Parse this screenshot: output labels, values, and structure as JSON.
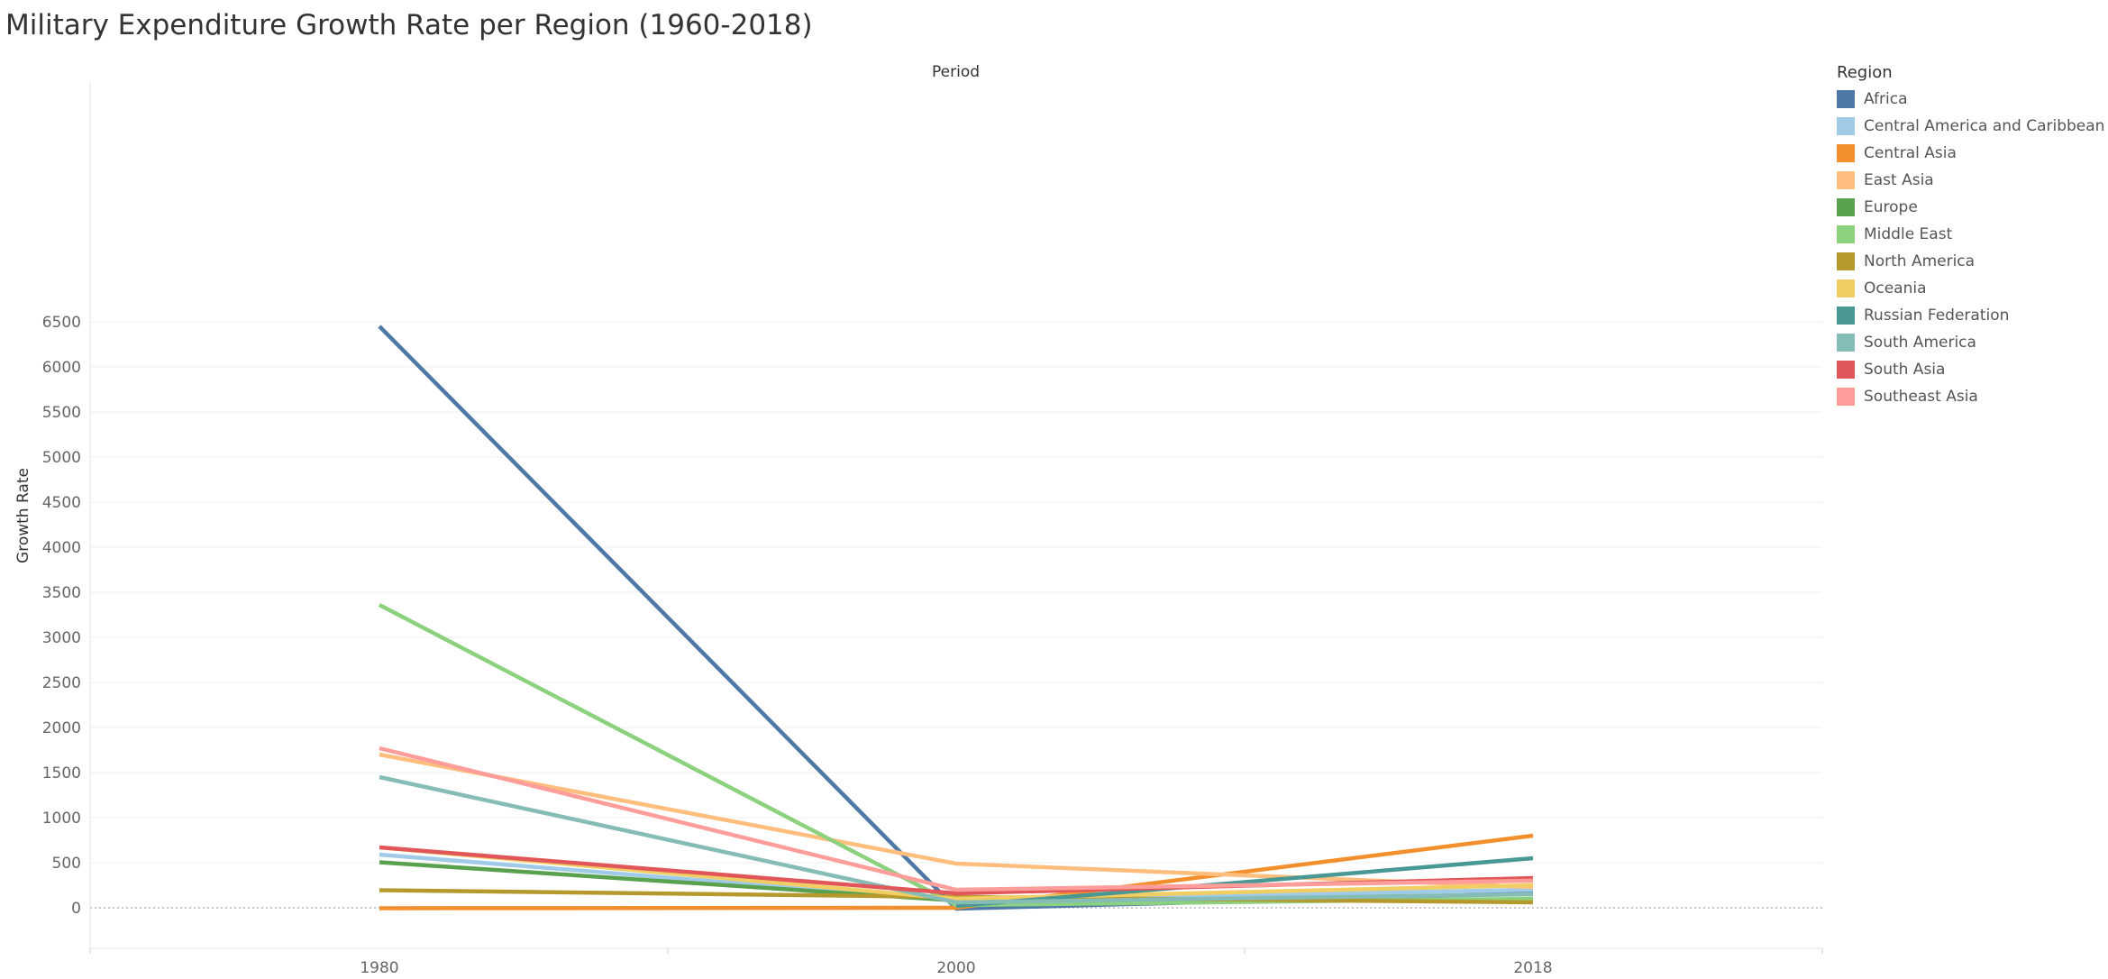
{
  "chart_data": {
    "type": "line",
    "title": "Military Expenditure Growth Rate per Region (1960-2018)",
    "column_header": "Period",
    "xlabel": "",
    "ylabel": "Growth Rate",
    "categories": [
      "1980",
      "2000",
      "2018"
    ],
    "y_ticks": [
      0,
      500,
      1000,
      1500,
      2000,
      2500,
      3000,
      3500,
      4000,
      4500,
      5000,
      5500,
      6000,
      6500
    ],
    "y_tick_labels": [
      "0",
      "500",
      "1000",
      "1500",
      "2000",
      "2500",
      "3000",
      "3500",
      "4000",
      "4500",
      "5000",
      "5500",
      "6000",
      "6500"
    ],
    "ylim": [
      -350,
      6800
    ],
    "legend_title": "Region",
    "legend_position": "right",
    "series": [
      {
        "name": "Africa",
        "color": "#4e79a7",
        "values": [
          6450,
          -10,
          160
        ]
      },
      {
        "name": "Central America and Caribbean",
        "color": "#a0cbe8",
        "values": [
          590,
          80,
          200
        ]
      },
      {
        "name": "Central Asia",
        "color": "#f28e2b",
        "values": [
          -5,
          0,
          800
        ]
      },
      {
        "name": "East Asia",
        "color": "#ffbe7d",
        "values": [
          1700,
          490,
          230
        ]
      },
      {
        "name": "Europe",
        "color": "#59a14f",
        "values": [
          505,
          80,
          80
        ]
      },
      {
        "name": "Middle East",
        "color": "#8cd17d",
        "values": [
          3360,
          30,
          100
        ]
      },
      {
        "name": "North America",
        "color": "#b6992d",
        "values": [
          195,
          120,
          60
        ]
      },
      {
        "name": "Oceania",
        "color": "#f1ce63",
        "values": [
          670,
          100,
          250
        ]
      },
      {
        "name": "Russian Federation",
        "color": "#499894",
        "values": [
          null,
          20,
          550
        ]
      },
      {
        "name": "South America",
        "color": "#86bcb6",
        "values": [
          1450,
          60,
          150
        ]
      },
      {
        "name": "South Asia",
        "color": "#e15759",
        "values": [
          670,
          160,
          330
        ]
      },
      {
        "name": "Southeast Asia",
        "color": "#ff9d9a",
        "values": [
          1770,
          200,
          300
        ]
      }
    ]
  }
}
